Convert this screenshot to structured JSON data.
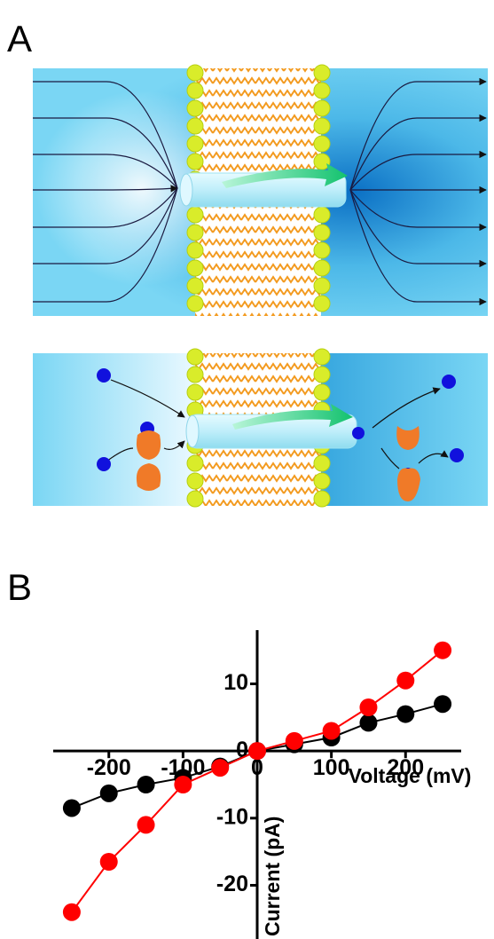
{
  "panel_labels": [
    "A",
    "B"
  ],
  "chart_data": {
    "type": "line",
    "x_label": "Voltage (mV)",
    "y_label": "Current (pA)",
    "x": [
      -250,
      -200,
      -150,
      -100,
      -50,
      0,
      50,
      100,
      150,
      200,
      250
    ],
    "series": [
      {
        "color": "#000000",
        "values": [
          -8.5,
          -6.3,
          -5,
          -4,
          -2.3,
          0,
          1,
          2,
          4.2,
          5.5,
          7
        ]
      },
      {
        "color": "#ff0000",
        "values": [
          -24,
          -16.5,
          -11,
          -5,
          -2.5,
          0,
          1.5,
          3,
          6.5,
          10.5,
          15
        ]
      }
    ],
    "xlim": [
      -275,
      275
    ],
    "ylim": [
      -28,
      18
    ],
    "xticks": [
      -200,
      -100,
      0,
      100,
      200
    ],
    "yticks": [
      -20,
      -10,
      0,
      10
    ]
  }
}
